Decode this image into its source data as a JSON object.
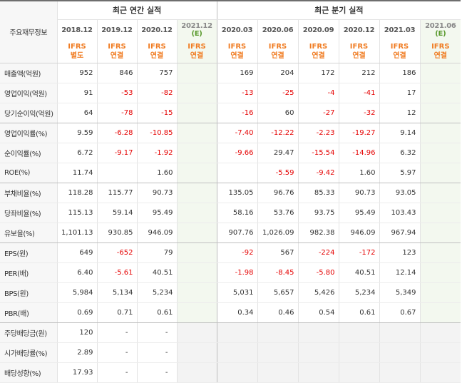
{
  "label_header": "주요재무정보",
  "group_headers": {
    "annual": "최근 연간 실적",
    "quarterly": "최근 분기 실적"
  },
  "annual_periods": [
    "2018.12",
    "2019.12",
    "2020.12",
    "2021.12"
  ],
  "quarterly_periods": [
    "2020.03",
    "2020.06",
    "2020.09",
    "2020.12",
    "2021.03",
    "2021.06"
  ],
  "estimate_marker": "(E)",
  "standards": [
    [
      "IFRS",
      "별도"
    ],
    [
      "IFRS",
      "연결"
    ],
    [
      "IFRS",
      "연결"
    ],
    [
      "IFRS",
      "연결"
    ],
    [
      "IFRS",
      "연결"
    ],
    [
      "IFRS",
      "연결"
    ],
    [
      "IFRS",
      "연결"
    ],
    [
      "IFRS",
      "연결"
    ],
    [
      "IFRS",
      "연결"
    ],
    [
      "IFRS",
      "연결"
    ]
  ],
  "rows": [
    {
      "label": "매출액(억원)",
      "values": [
        "952",
        "846",
        "757",
        "",
        "169",
        "204",
        "172",
        "212",
        "186",
        ""
      ]
    },
    {
      "label": "영업이익(억원)",
      "values": [
        "91",
        "-53",
        "-82",
        "",
        "-13",
        "-25",
        "-4",
        "-41",
        "17",
        ""
      ]
    },
    {
      "label": "당기순이익(억원)",
      "values": [
        "64",
        "-78",
        "-15",
        "",
        "-16",
        "60",
        "-27",
        "-32",
        "12",
        ""
      ]
    },
    {
      "label": "영업이익률(%)",
      "values": [
        "9.59",
        "-6.28",
        "-10.85",
        "",
        "-7.40",
        "-12.22",
        "-2.23",
        "-19.27",
        "9.14",
        ""
      ]
    },
    {
      "label": "순이익률(%)",
      "values": [
        "6.72",
        "-9.17",
        "-1.92",
        "",
        "-9.66",
        "29.47",
        "-15.54",
        "-14.96",
        "6.32",
        ""
      ]
    },
    {
      "label": "ROE(%)",
      "values": [
        "11.74",
        "",
        "1.60",
        "",
        "",
        "-5.59",
        "-9.42",
        "1.60",
        "5.97",
        ""
      ]
    },
    {
      "label": "부채비율(%)",
      "values": [
        "118.28",
        "115.77",
        "90.73",
        "",
        "135.05",
        "96.76",
        "85.33",
        "90.73",
        "93.05",
        ""
      ]
    },
    {
      "label": "당좌비율(%)",
      "values": [
        "115.13",
        "59.14",
        "95.49",
        "",
        "58.16",
        "53.76",
        "93.75",
        "95.49",
        "103.43",
        ""
      ]
    },
    {
      "label": "유보율(%)",
      "values": [
        "1,101.13",
        "930.85",
        "946.09",
        "",
        "907.76",
        "1,026.09",
        "982.38",
        "946.09",
        "967.94",
        ""
      ]
    },
    {
      "label": "EPS(원)",
      "values": [
        "649",
        "-652",
        "79",
        "",
        "-92",
        "567",
        "-224",
        "-172",
        "123",
        ""
      ]
    },
    {
      "label": "PER(배)",
      "values": [
        "6.40",
        "-5.61",
        "40.51",
        "",
        "-1.98",
        "-8.45",
        "-5.80",
        "40.51",
        "12.14",
        ""
      ]
    },
    {
      "label": "BPS(원)",
      "values": [
        "5,984",
        "5,134",
        "5,234",
        "",
        "5,031",
        "5,657",
        "5,426",
        "5,234",
        "5,349",
        ""
      ]
    },
    {
      "label": "PBR(배)",
      "values": [
        "0.69",
        "0.71",
        "0.61",
        "",
        "0.34",
        "0.46",
        "0.54",
        "0.61",
        "0.67",
        ""
      ]
    },
    {
      "label": "주당배당금(원)",
      "values": [
        "120",
        "-",
        "-",
        "",
        "",
        "",
        "",
        "",
        "",
        ""
      ]
    },
    {
      "label": "시가배당률(%)",
      "values": [
        "2.89",
        "-",
        "-",
        "",
        "",
        "",
        "",
        "",
        "",
        ""
      ]
    },
    {
      "label": "배당성향(%)",
      "values": [
        "17.93",
        "-",
        "-",
        "",
        "",
        "",
        "",
        "",
        "",
        ""
      ]
    }
  ],
  "colors": {
    "negative": "#e50000",
    "standard": "#f07c22",
    "estimate_bg": "#f3f8ef",
    "estimate_marker": "#5a9a2e",
    "empty_bg": "#f3f3f3"
  }
}
